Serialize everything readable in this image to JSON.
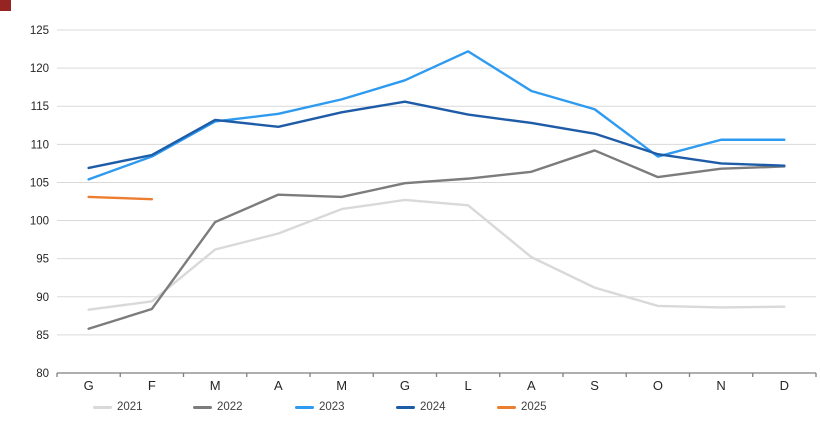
{
  "page": {
    "background": "#ffffff",
    "corner_marker_color": "#962423"
  },
  "style": {
    "gridline_color": "#d9d9d9",
    "axis_line_color": "#7f7f7f",
    "tick_label_color": "#262626",
    "legend_label_color": "#404040"
  },
  "chart_data": {
    "type": "line",
    "title": "",
    "xlabel": "",
    "ylabel": "",
    "categories": [
      "G",
      "F",
      "M",
      "A",
      "M",
      "G",
      "L",
      "A",
      "S",
      "O",
      "N",
      "D"
    ],
    "yticks": [
      80,
      85,
      90,
      95,
      100,
      105,
      110,
      115,
      120,
      125
    ],
    "ylim": [
      80,
      125
    ],
    "grid": "horizontal",
    "legend_position": "bottom",
    "series": [
      {
        "name": "2021",
        "color": "#d9d9d9",
        "values": [
          88.3,
          89.4,
          96.2,
          98.3,
          101.5,
          102.7,
          102.0,
          95.2,
          91.2,
          88.8,
          88.6,
          88.7
        ]
      },
      {
        "name": "2022",
        "color": "#7c7c7c",
        "values": [
          85.8,
          88.4,
          99.8,
          103.4,
          103.1,
          104.9,
          105.5,
          106.4,
          109.2,
          105.7,
          106.8,
          107.1
        ]
      },
      {
        "name": "2023",
        "color": "#2e9bf0",
        "values": [
          105.4,
          108.4,
          113.0,
          114.0,
          115.9,
          118.4,
          122.2,
          117.0,
          114.6,
          108.4,
          110.6,
          110.6
        ]
      },
      {
        "name": "2024",
        "color": "#1e5ca8",
        "values": [
          106.9,
          108.6,
          113.2,
          112.3,
          114.2,
          115.6,
          113.9,
          112.8,
          111.4,
          108.7,
          107.5,
          107.2
        ]
      },
      {
        "name": "2025",
        "color": "#ed7d31",
        "values": [
          103.1,
          102.8,
          null,
          null,
          null,
          null,
          null,
          null,
          null,
          null,
          null,
          null
        ]
      }
    ]
  }
}
